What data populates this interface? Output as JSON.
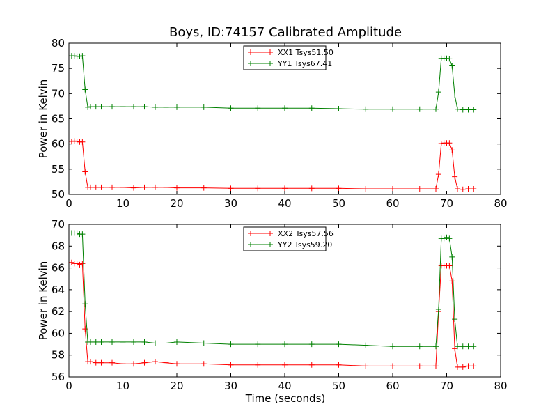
{
  "figure": {
    "title": "Boys, ID:74157 Calibrated Amplitude",
    "xlabel": "Time (seconds)"
  },
  "chart_data": [
    {
      "type": "line",
      "title": "Boys, ID:74157 Calibrated Amplitude",
      "xlabel": "",
      "ylabel": "Power in Kelvin",
      "xlim": [
        0,
        80
      ],
      "ylim": [
        50,
        80
      ],
      "xticks": [
        "0",
        "10",
        "20",
        "30",
        "40",
        "50",
        "60",
        "70",
        "80"
      ],
      "yticks": [
        "50",
        "55",
        "60",
        "65",
        "70",
        "75",
        "80"
      ],
      "legend_placement": "upper-center",
      "series": [
        {
          "name": "XX1 Tsys51.50",
          "color": "#ff0000",
          "marker": "+",
          "x": [
            0.5,
            1.0,
            1.5,
            2.0,
            2.5,
            3.0,
            3.5,
            4.0,
            5.0,
            6.0,
            8.0,
            10.0,
            12.0,
            14.0,
            16.0,
            18.0,
            20.0,
            25.0,
            30.0,
            35.0,
            40.0,
            45.0,
            50.0,
            55.0,
            60.0,
            65.0,
            68.0,
            68.5,
            69.0,
            69.5,
            70.0,
            70.5,
            71.0,
            71.5,
            72.0,
            73.0,
            74.0,
            75.0
          ],
          "values": [
            60.5,
            60.6,
            60.5,
            60.4,
            60.4,
            54.5,
            51.4,
            51.4,
            51.4,
            51.4,
            51.4,
            51.4,
            51.3,
            51.4,
            51.4,
            51.4,
            51.3,
            51.3,
            51.2,
            51.2,
            51.2,
            51.2,
            51.2,
            51.1,
            51.1,
            51.1,
            51.1,
            54.0,
            60.1,
            60.2,
            60.2,
            60.2,
            58.8,
            53.5,
            51.1,
            51.0,
            51.1,
            51.1
          ]
        },
        {
          "name": "YY1 Tsys67.41",
          "color": "#008000",
          "marker": "+",
          "x": [
            0.5,
            1.0,
            1.5,
            2.0,
            2.5,
            3.0,
            3.5,
            4.0,
            5.0,
            6.0,
            8.0,
            10.0,
            12.0,
            14.0,
            16.0,
            18.0,
            20.0,
            25.0,
            30.0,
            35.0,
            40.0,
            45.0,
            50.0,
            55.0,
            60.0,
            65.0,
            68.0,
            68.5,
            69.0,
            69.5,
            70.0,
            70.5,
            71.0,
            71.5,
            72.0,
            73.0,
            74.0,
            75.0
          ],
          "values": [
            77.5,
            77.5,
            77.4,
            77.4,
            77.5,
            70.8,
            67.3,
            67.4,
            67.4,
            67.4,
            67.4,
            67.4,
            67.4,
            67.4,
            67.3,
            67.3,
            67.3,
            67.3,
            67.1,
            67.1,
            67.1,
            67.1,
            67.0,
            66.9,
            66.9,
            66.9,
            66.9,
            70.3,
            77.0,
            77.0,
            77.0,
            76.9,
            75.5,
            69.7,
            66.9,
            66.8,
            66.8,
            66.8
          ]
        }
      ]
    },
    {
      "type": "line",
      "title": "",
      "xlabel": "Time (seconds)",
      "ylabel": "Power in Kelvin",
      "xlim": [
        0,
        80
      ],
      "ylim": [
        56,
        70
      ],
      "xticks": [
        "0",
        "10",
        "20",
        "30",
        "40",
        "50",
        "60",
        "70",
        "80"
      ],
      "yticks": [
        "56",
        "58",
        "60",
        "62",
        "64",
        "66",
        "68",
        "70"
      ],
      "legend_placement": "upper-center",
      "series": [
        {
          "name": "XX2 Tsys57.56",
          "color": "#ff0000",
          "marker": "+",
          "x": [
            0.5,
            1.0,
            1.5,
            2.0,
            2.5,
            3.0,
            3.5,
            4.0,
            5.0,
            6.0,
            8.0,
            10.0,
            12.0,
            14.0,
            16.0,
            18.0,
            20.0,
            25.0,
            30.0,
            35.0,
            40.0,
            45.0,
            50.0,
            55.0,
            60.0,
            65.0,
            68.0,
            68.5,
            69.0,
            69.5,
            70.0,
            70.5,
            71.0,
            71.5,
            72.0,
            73.0,
            74.0,
            75.0
          ],
          "values": [
            66.5,
            66.4,
            66.4,
            66.3,
            66.4,
            60.4,
            57.4,
            57.4,
            57.3,
            57.3,
            57.3,
            57.2,
            57.2,
            57.3,
            57.4,
            57.3,
            57.2,
            57.2,
            57.1,
            57.1,
            57.1,
            57.1,
            57.1,
            57.0,
            57.0,
            57.0,
            57.0,
            62.0,
            66.2,
            66.2,
            66.2,
            66.2,
            64.8,
            58.6,
            56.9,
            56.9,
            57.0,
            57.0
          ]
        },
        {
          "name": "YY2 Tsys59.20",
          "color": "#008000",
          "marker": "+",
          "x": [
            0.5,
            1.0,
            1.5,
            2.0,
            2.5,
            3.0,
            3.5,
            4.0,
            5.0,
            6.0,
            8.0,
            10.0,
            12.0,
            14.0,
            16.0,
            18.0,
            20.0,
            25.0,
            30.0,
            35.0,
            40.0,
            45.0,
            50.0,
            55.0,
            60.0,
            65.0,
            68.0,
            68.5,
            69.0,
            69.5,
            70.0,
            70.5,
            71.0,
            71.5,
            72.0,
            73.0,
            74.0,
            75.0
          ],
          "values": [
            69.2,
            69.2,
            69.2,
            69.1,
            69.1,
            62.7,
            59.2,
            59.2,
            59.2,
            59.2,
            59.2,
            59.2,
            59.2,
            59.2,
            59.1,
            59.1,
            59.2,
            59.1,
            59.0,
            59.0,
            59.0,
            59.0,
            59.0,
            58.9,
            58.8,
            58.8,
            58.8,
            62.2,
            68.7,
            68.7,
            68.8,
            68.7,
            67.0,
            61.3,
            58.8,
            58.8,
            58.8,
            58.8
          ]
        }
      ]
    }
  ]
}
